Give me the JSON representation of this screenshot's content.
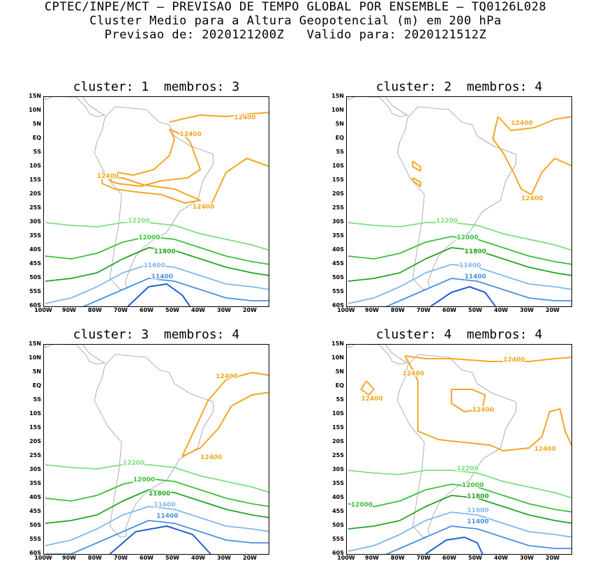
{
  "header": {
    "line1": "CPTEC/INPE/MCT — PREVISAO DE TEMPO GLOBAL POR ENSEMBLE — TQ0126L028",
    "line2": "Cluster Medio para a Altura Geopotencial (m) em 200 hPa",
    "line3": "Previsao de: 2020121200Z   Valido para: 2020121512Z"
  },
  "axes": {
    "lat_labels": [
      "15N",
      "10N",
      "5N",
      "EQ",
      "5S",
      "10S",
      "15S",
      "20S",
      "25S",
      "30S",
      "35S",
      "40S",
      "45S",
      "50S",
      "55S",
      "60S"
    ],
    "lon_labels": [
      "100W",
      "90W",
      "80W",
      "70W",
      "60W",
      "50W",
      "40W",
      "30W",
      "20W"
    ]
  },
  "colors": {
    "c12400": "#f5a623",
    "c12200": "#7be07b",
    "c12000": "#3cbf3c",
    "c11800": "#22a322",
    "c11600": "#7fb8f0",
    "c11400": "#4a90e2",
    "c11200": "#1f5fd0",
    "map": "#9a9a9a"
  },
  "panels": [
    {
      "title": "cluster: 1  membros: 3",
      "labels": [
        "12400",
        "12400",
        "12400",
        "12400",
        "12200",
        "12000",
        "11800",
        "11600",
        "11400"
      ]
    },
    {
      "title": "cluster: 2  membros: 4",
      "labels": [
        "12400",
        "12400",
        "12200",
        "12000",
        "11800",
        "11600",
        "11400"
      ]
    },
    {
      "title": "cluster: 3  membros: 4",
      "labels": [
        "12400",
        "12400",
        "12200",
        "12000",
        "11800",
        "11600",
        "11400"
      ]
    },
    {
      "title": "cluster: 4  membros: 4",
      "labels": [
        "12400",
        "12400",
        "12400",
        "12400",
        "12400",
        "12200",
        "12000",
        "11800",
        "11600",
        "11400",
        "12000"
      ]
    }
  ]
}
